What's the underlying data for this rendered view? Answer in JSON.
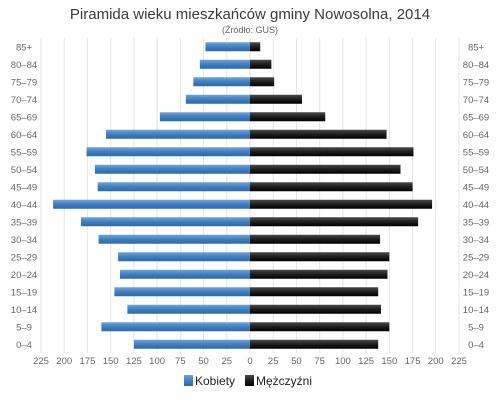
{
  "chart_data": {
    "type": "bar",
    "orientation": "horizontal",
    "layout": "population-pyramid",
    "title": "Piramida wieku mieszkańców gminy Nowosolna, 2014",
    "subtitle": "(Źródło: GUS)",
    "categories": [
      "0–4",
      "5–9",
      "10–14",
      "15–19",
      "20–24",
      "25–29",
      "30–34",
      "35–39",
      "40–44",
      "45–49",
      "50–54",
      "55–59",
      "60–64",
      "65–69",
      "70–74",
      "75–79",
      "80–84",
      "85+"
    ],
    "series": [
      {
        "name": "Kobiety",
        "side": "left",
        "color": "#4a86c5",
        "values": [
          125,
          160,
          132,
          146,
          140,
          142,
          163,
          182,
          212,
          164,
          167,
          176,
          155,
          97,
          69,
          61,
          54,
          48
        ]
      },
      {
        "name": "Mężczyźni",
        "side": "right",
        "color": "#1e1e1e",
        "values": [
          138,
          150,
          141,
          138,
          148,
          150,
          140,
          181,
          196,
          175,
          162,
          176,
          147,
          81,
          56,
          26,
          23,
          11
        ]
      }
    ],
    "x_ticks": [
      "225",
      "200",
      "175",
      "150",
      "125",
      "100",
      "75",
      "50",
      "25",
      "0",
      "25",
      "50",
      "75",
      "100",
      "125",
      "150",
      "175",
      "200",
      "225"
    ],
    "xlim": [
      -225,
      225
    ],
    "grid": true,
    "legend_position": "bottom-center"
  }
}
